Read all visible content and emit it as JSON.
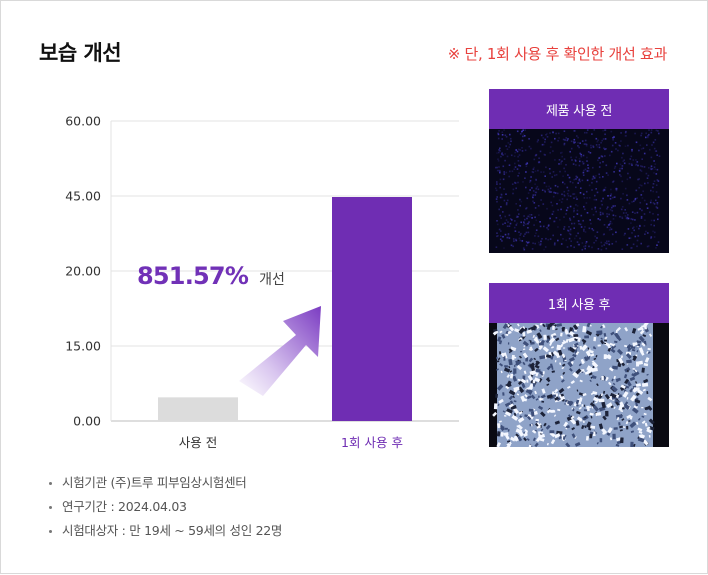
{
  "header": {
    "title": "보습 개선",
    "note": "※ 단, 1회 사용 후 확인한 개선 효과"
  },
  "chart_data": {
    "type": "bar",
    "y_tick_labels": [
      "60.00",
      "45.00",
      "20.00",
      "15.00",
      "0.00"
    ],
    "categories": [
      "사용 전",
      "1회 사용 후"
    ],
    "values": [
      4.73,
      45.0
    ],
    "bar_colors": [
      "#dcdcdc",
      "#6f2db3"
    ],
    "category_label_colors": [
      "#333333",
      "#6f2db3"
    ],
    "ylim": [
      0,
      60
    ],
    "grid": true,
    "legend": "none",
    "annotation": {
      "value": "851.57%",
      "suffix": "개선"
    }
  },
  "photos": [
    {
      "label": "제품 사용 전"
    },
    {
      "label": "1회 사용 후"
    }
  ],
  "info": [
    "시험기관 (주)트루 피부임상시험센터",
    "연구기간 : 2024.04.03",
    "시험대상자 : 만 19세 ~ 59세의 성인 22명"
  ],
  "colors": {
    "accent": "#6f2db3",
    "note": "#e8413d"
  }
}
